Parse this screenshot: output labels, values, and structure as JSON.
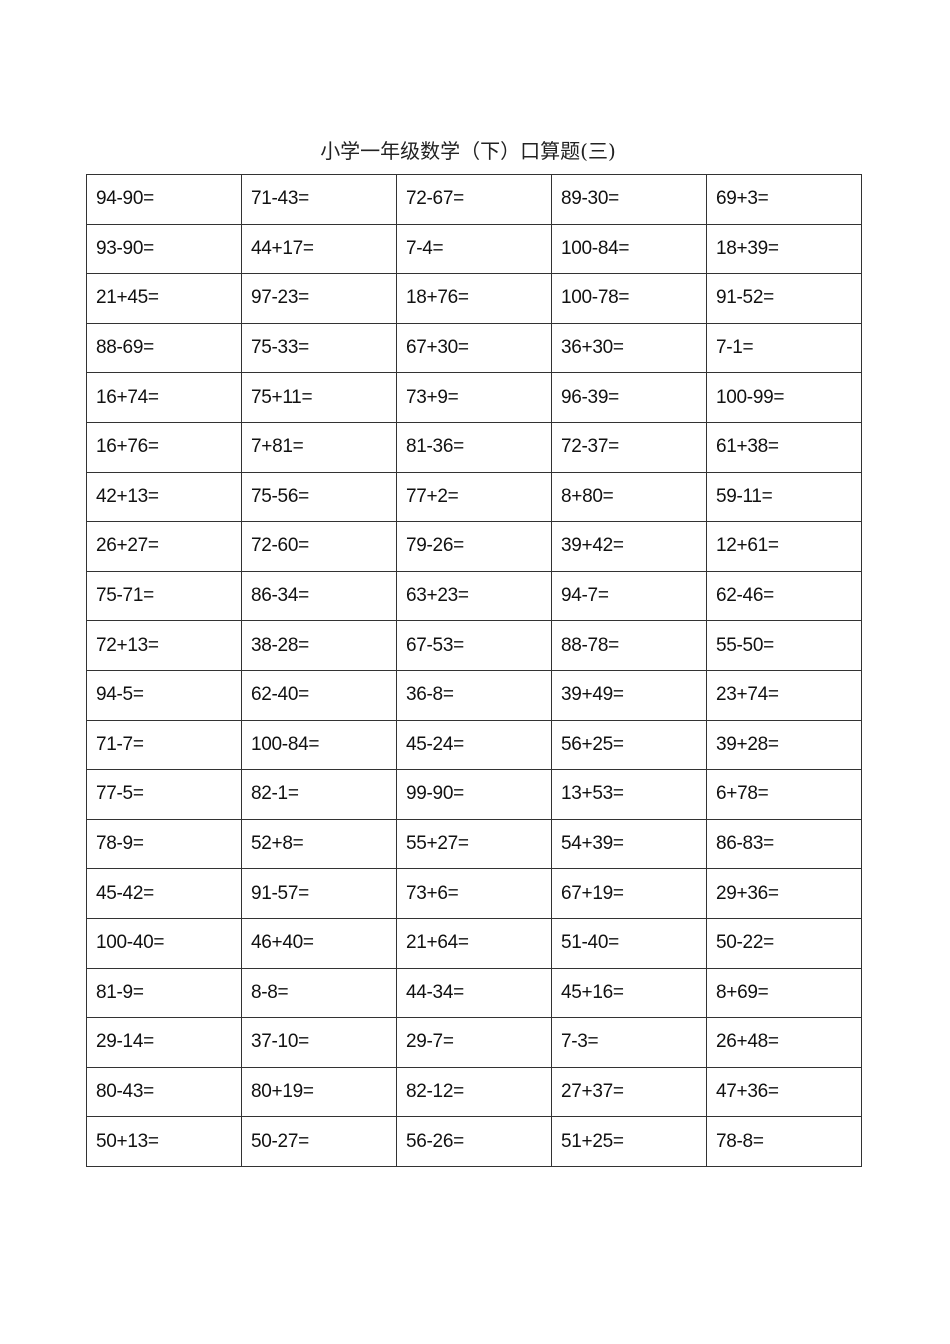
{
  "document": {
    "title": "小学一年级数学（下）口算题(三)",
    "problems": [
      [
        "94-90=",
        "71-43=",
        "72-67=",
        "89-30=",
        "69+3="
      ],
      [
        "93-90=",
        "44+17=",
        "7-4=",
        "100-84=",
        "18+39="
      ],
      [
        "21+45=",
        "97-23=",
        "18+76=",
        "100-78=",
        "91-52="
      ],
      [
        "88-69=",
        "75-33=",
        "67+30=",
        "36+30=",
        "7-1="
      ],
      [
        "16+74=",
        "75+11=",
        "73+9=",
        "96-39=",
        "100-99="
      ],
      [
        "16+76=",
        "7+81=",
        "81-36=",
        "72-37=",
        "61+38="
      ],
      [
        "42+13=",
        "75-56=",
        "77+2=",
        "8+80=",
        "59-11="
      ],
      [
        "26+27=",
        "72-60=",
        "79-26=",
        "39+42=",
        "12+61="
      ],
      [
        "75-71=",
        "86-34=",
        "63+23=",
        "94-7=",
        "62-46="
      ],
      [
        "72+13=",
        "38-28=",
        "67-53=",
        "88-78=",
        "55-50="
      ],
      [
        "94-5=",
        "62-40=",
        "36-8=",
        "39+49=",
        "23+74="
      ],
      [
        "71-7=",
        "100-84=",
        "45-24=",
        "56+25=",
        "39+28="
      ],
      [
        "77-5=",
        "82-1=",
        "99-90=",
        "13+53=",
        "6+78="
      ],
      [
        "78-9=",
        "52+8=",
        "55+27=",
        "54+39=",
        "86-83="
      ],
      [
        "45-42=",
        "91-57=",
        "73+6=",
        "67+19=",
        "29+36="
      ],
      [
        "100-40=",
        "46+40=",
        "21+64=",
        "51-40=",
        "50-22="
      ],
      [
        "81-9=",
        "8-8=",
        "44-34=",
        "45+16=",
        "8+69="
      ],
      [
        "29-14=",
        "37-10=",
        "29-7=",
        "7-3=",
        "26+48="
      ],
      [
        "80-43=",
        "80+19=",
        "82-12=",
        "27+37=",
        "47+36="
      ],
      [
        "50+13=",
        "50-27=",
        "56-26=",
        "51+25=",
        "78-8="
      ]
    ]
  }
}
